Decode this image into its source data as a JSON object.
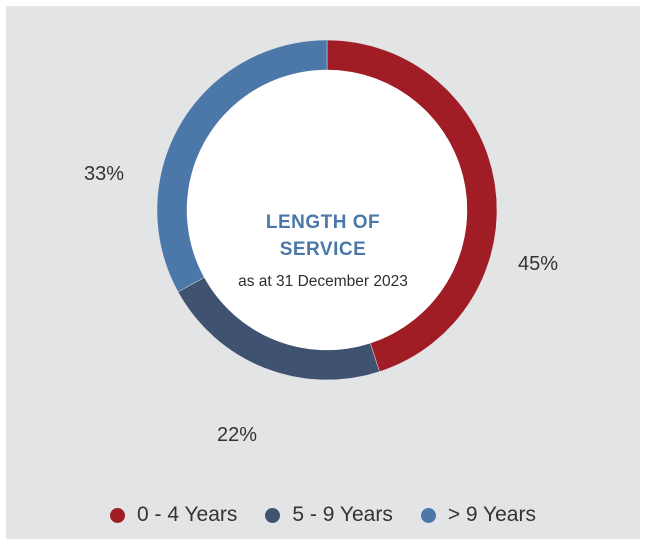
{
  "chart_data": {
    "type": "pie",
    "title": "LENGTH OF SERVICE",
    "title_lines": [
      "LENGTH OF",
      "SERVICE"
    ],
    "subtitle": "as at 31 December 2023",
    "categories": [
      "0 - 4 Years",
      "5 - 9 Years",
      "> 9 Years"
    ],
    "values": [
      45,
      22,
      33
    ],
    "value_labels": [
      "45%",
      "22%",
      "33%"
    ],
    "colors": [
      "#a11d25",
      "#3f5270",
      "#4b78a8"
    ],
    "legend_placement": "bottom",
    "style": "donut"
  }
}
